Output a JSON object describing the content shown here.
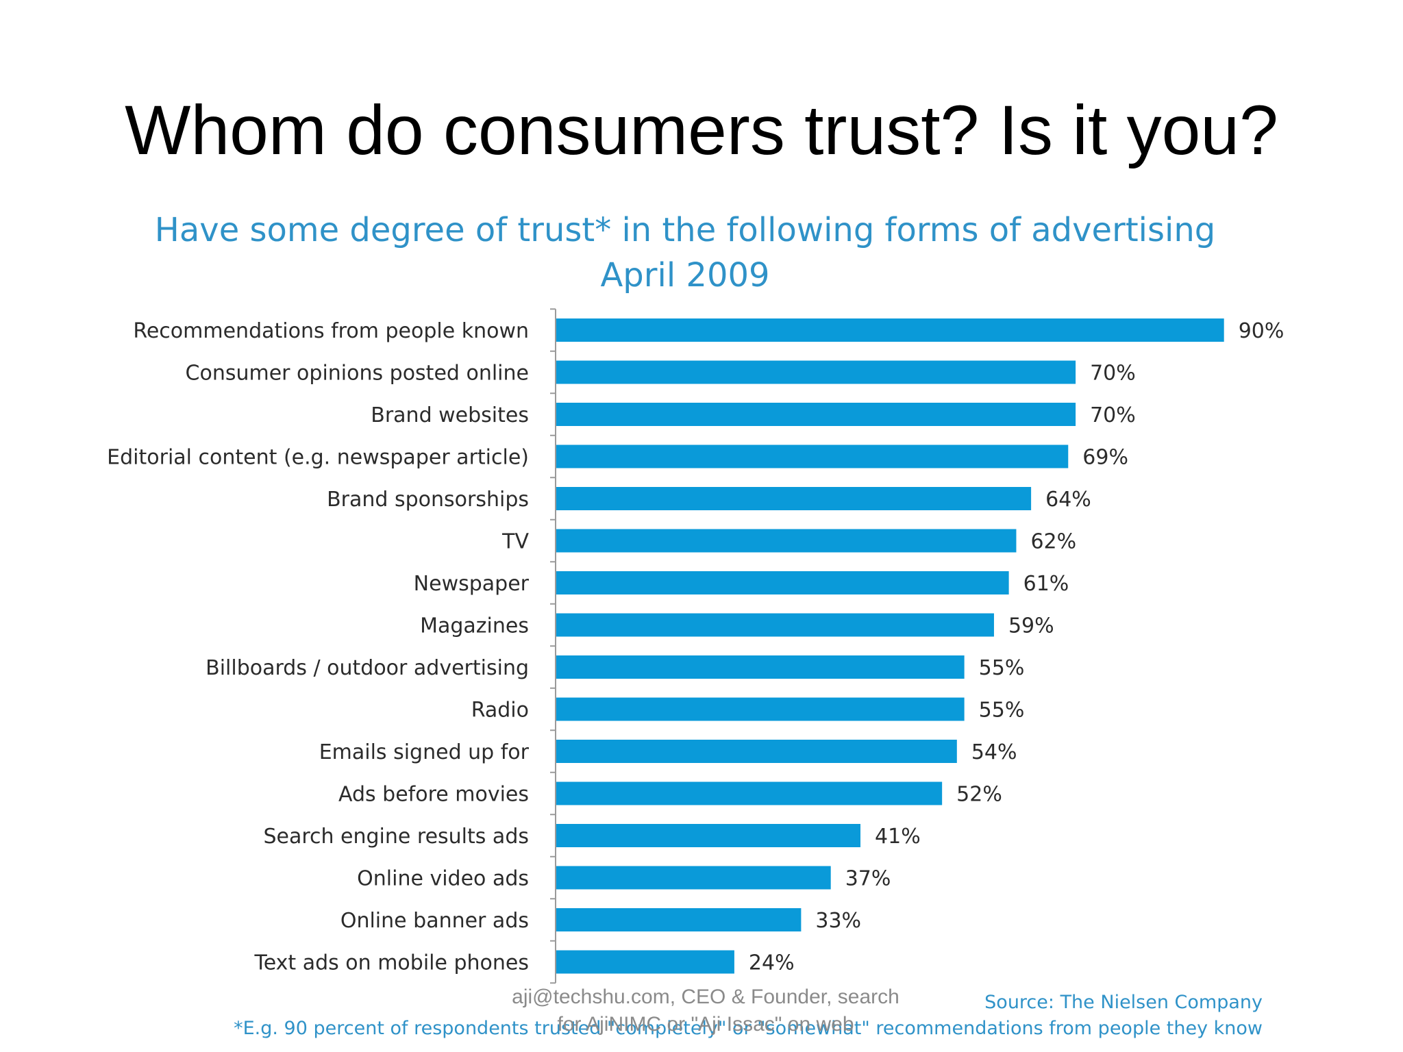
{
  "slide": {
    "title": "Whom do consumers trust? Is it you?",
    "author_note": "aji@techshu.com, CEO & Founder, search for AjiNIMC or \"Aji Issac\" on web"
  },
  "colors": {
    "bar": "#0a9ad9",
    "chart_title": "#2f92c8",
    "text": "#2b2b2b"
  },
  "chart_data": {
    "type": "bar",
    "orientation": "horizontal",
    "title": "Have some degree of trust* in the following forms of advertising",
    "subtitle": "April 2009",
    "categories": [
      "Recommendations from people known",
      "Consumer opinions posted online",
      "Brand websites",
      "Editorial content (e.g. newspaper article)",
      "Brand sponsorships",
      "TV",
      "Newspaper",
      "Magazines",
      "Billboards / outdoor advertising",
      "Radio",
      "Emails signed up for",
      "Ads before movies",
      "Search engine results ads",
      "Online video ads",
      "Online banner ads",
      "Text ads on mobile phones"
    ],
    "values": [
      90,
      70,
      70,
      69,
      64,
      62,
      61,
      59,
      55,
      55,
      54,
      52,
      41,
      37,
      33,
      24
    ],
    "value_suffix": "%",
    "xlim": [
      0,
      100
    ],
    "grid": false,
    "legend": "none",
    "source": "Source: The Nielsen Company",
    "footnote": "*E.g. 90 percent of respondents trusted \"completely\" or \"somewhat\" recommendations from people they know"
  }
}
